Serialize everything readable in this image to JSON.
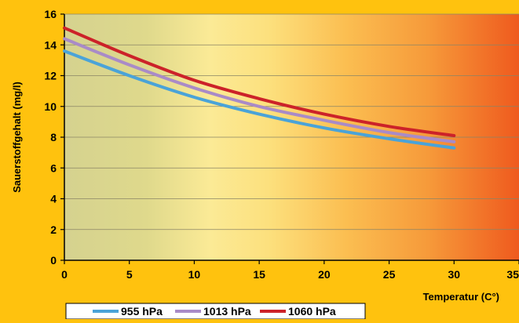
{
  "chart_data": {
    "type": "line",
    "title": "",
    "xlabel": "Temperatur (C°)",
    "ylabel": "Sauerstoffgehalt (mg/l)",
    "xlim": [
      0,
      35
    ],
    "ylim": [
      0,
      16
    ],
    "xticks": [
      0,
      5,
      10,
      15,
      20,
      25,
      30,
      35
    ],
    "yticks": [
      0,
      2,
      4,
      6,
      8,
      10,
      12,
      14,
      16
    ],
    "grid": "horizontal",
    "legend_position": "bottom-left",
    "background": "gradient from olive-beige (left) through pale yellow to orange-red (right)",
    "x": [
      0,
      5,
      10,
      15,
      20,
      25,
      30
    ],
    "series": [
      {
        "name": "955 hPa",
        "color": "#4AA3D8",
        "values": [
          13.6,
          12.0,
          10.6,
          9.5,
          8.6,
          7.9,
          7.3
        ]
      },
      {
        "name": "1013 hPa",
        "color": "#A98BC7",
        "values": [
          14.4,
          12.7,
          11.2,
          10.0,
          9.1,
          8.3,
          7.7
        ]
      },
      {
        "name": "1060 hPa",
        "color": "#CC2229",
        "values": [
          15.1,
          13.3,
          11.7,
          10.5,
          9.5,
          8.7,
          8.1
        ]
      }
    ]
  }
}
